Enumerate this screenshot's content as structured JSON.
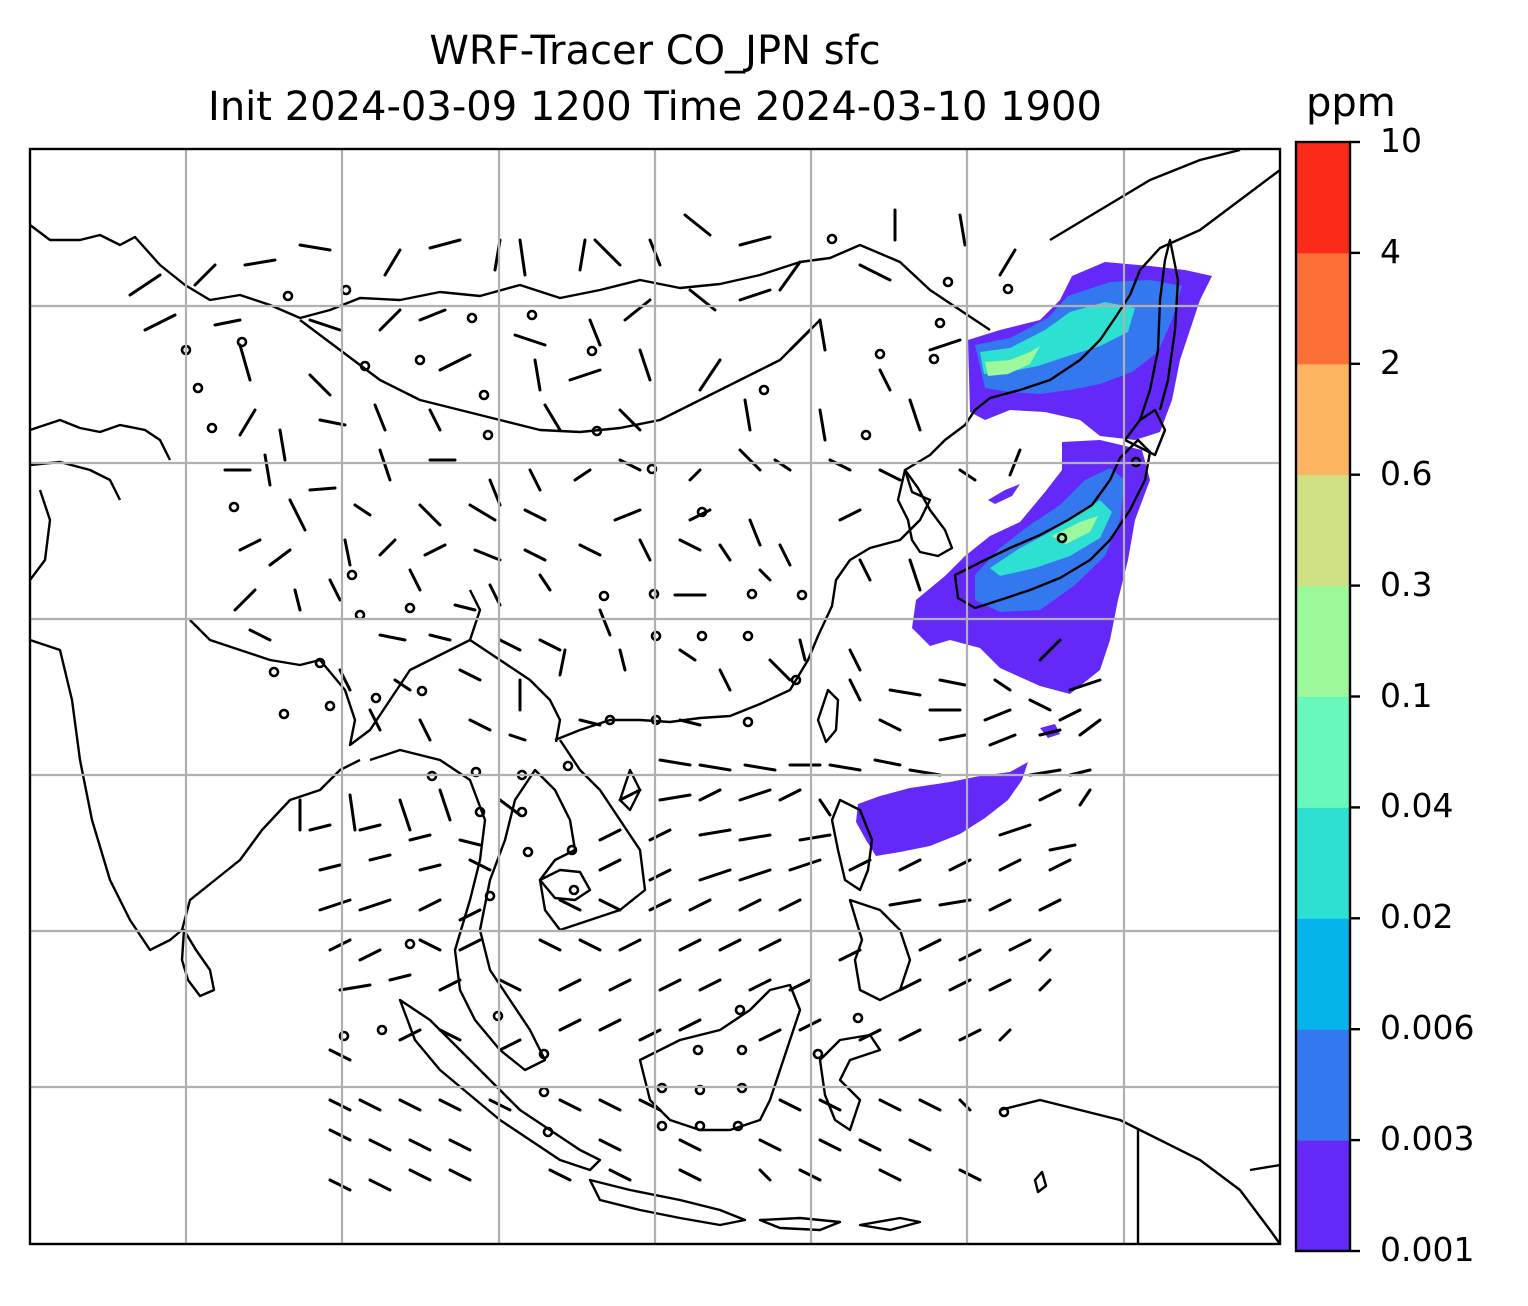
{
  "title": {
    "line1": "WRF-Tracer CO_JPN sfc",
    "line2": "Init 2024-03-09 1200 Time 2024-03-10 1900"
  },
  "colorbar": {
    "unit": "ppm",
    "levels": [
      "0.001",
      "0.003",
      "0.006",
      "0.02",
      "0.04",
      "0.1",
      "0.3",
      "0.6",
      "2",
      "4",
      "10"
    ],
    "colors": [
      "#6428f8",
      "#3478f0",
      "#04b4ea",
      "#2ee0d2",
      "#68f8bc",
      "#9cf89a",
      "#d0e084",
      "#fcb460",
      "#fc7038",
      "#fc2a18"
    ]
  },
  "map": {
    "gridlines": true,
    "coastline_color": "#000000",
    "grid_color": "#b0b0b0",
    "wind_barbs": true,
    "tracer": "CO_JPN"
  }
}
